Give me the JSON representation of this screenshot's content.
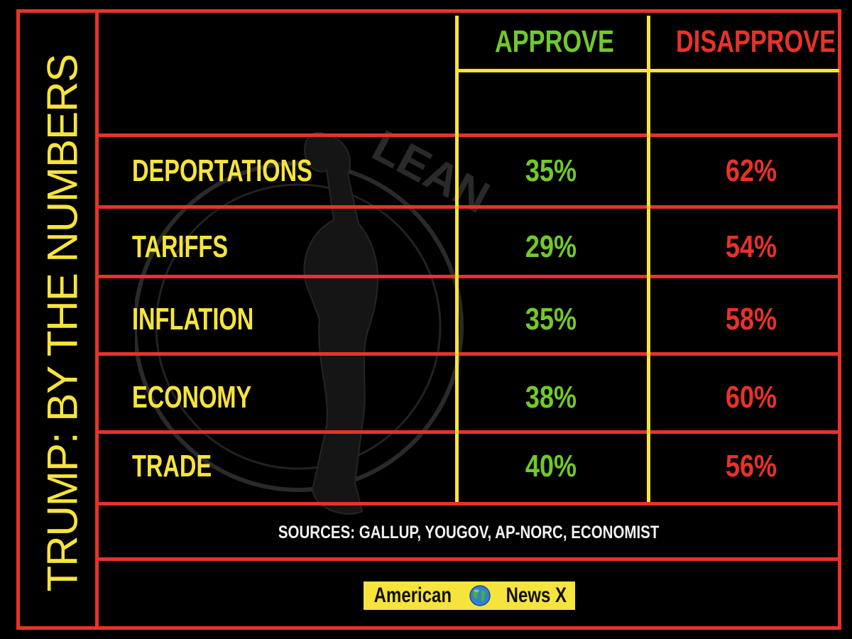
{
  "title": "TRUMP: BY THE NUMBERS",
  "chart_data": {
    "type": "table",
    "title": "TRUMP: BY THE NUMBERS",
    "columns": [
      "APPROVE",
      "DISAPPROVE"
    ],
    "rows": [
      {
        "label": "DEPORTATIONS",
        "approve": "35%",
        "disapprove": "62%"
      },
      {
        "label": "TARIFFS",
        "approve": "29%",
        "disapprove": "54%"
      },
      {
        "label": "INFLATION",
        "approve": "35%",
        "disapprove": "58%"
      },
      {
        "label": "ECONOMY",
        "approve": "38%",
        "disapprove": "60%"
      },
      {
        "label": "TRADE",
        "approve": "40%",
        "disapprove": "56%"
      }
    ],
    "approve_values": [
      35,
      29,
      35,
      38,
      40
    ],
    "disapprove_values": [
      62,
      54,
      58,
      60,
      56
    ]
  },
  "sources": "SOURCES: GALLUP, YOUGOV, AP-NORC, ECONOMIST",
  "brand": {
    "left": "American",
    "right": "News X",
    "icon": "globe-icon"
  },
  "watermark_text": "LEAN LEFT",
  "colors": {
    "background": "#000000",
    "border_red": "#e8322a",
    "divider_yellow": "#f6e43c",
    "label_yellow": "#f6e43c",
    "approve_green": "#72c92a",
    "disapprove_red": "#e8322a",
    "brand_bg": "#f6e43c"
  }
}
